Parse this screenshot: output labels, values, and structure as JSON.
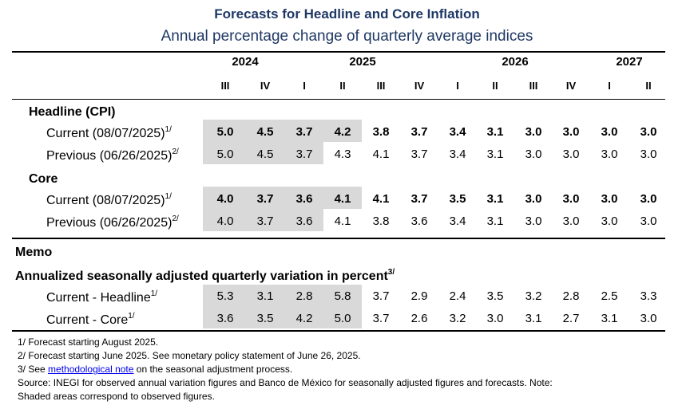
{
  "title": "Forecasts for Headline and Core Inflation",
  "subtitle": "Annual percentage change of quarterly average indices",
  "years": [
    "2024",
    "2025",
    "2026",
    "2027"
  ],
  "quarters": [
    "III",
    "IV",
    "I",
    "II",
    "III",
    "IV",
    "I",
    "II",
    "III",
    "IV",
    "I",
    "II"
  ],
  "headline": {
    "title": "Headline (CPI)",
    "current": {
      "label": "Current (08/07/2025)",
      "sup": "1/",
      "values": [
        "5.0",
        "4.5",
        "3.7",
        "4.2",
        "3.8",
        "3.7",
        "3.4",
        "3.1",
        "3.0",
        "3.0",
        "3.0",
        "3.0"
      ]
    },
    "previous": {
      "label": "Previous (06/26/2025)",
      "sup": "2/",
      "values": [
        "5.0",
        "4.5",
        "3.7",
        "4.3",
        "4.1",
        "3.7",
        "3.4",
        "3.1",
        "3.0",
        "3.0",
        "3.0",
        "3.0"
      ]
    }
  },
  "core": {
    "title": "Core",
    "current": {
      "label": "Current (08/07/2025)",
      "sup": "1/",
      "values": [
        "4.0",
        "3.7",
        "3.6",
        "4.1",
        "4.1",
        "3.7",
        "3.5",
        "3.1",
        "3.0",
        "3.0",
        "3.0",
        "3.0"
      ]
    },
    "previous": {
      "label": "Previous (06/26/2025)",
      "sup": "2/",
      "values": [
        "4.0",
        "3.7",
        "3.6",
        "4.1",
        "3.8",
        "3.6",
        "3.4",
        "3.1",
        "3.0",
        "3.0",
        "3.0",
        "3.0"
      ]
    }
  },
  "memo": {
    "title": "Memo",
    "subtitle": "Annualized seasonally adjusted quarterly variation in percent",
    "subtitle_sup": "3/",
    "headline": {
      "label": "Current - Headline",
      "sup": "1/",
      "values": [
        "5.3",
        "3.1",
        "2.8",
        "5.8",
        "3.7",
        "2.9",
        "2.4",
        "3.5",
        "3.2",
        "2.8",
        "2.5",
        "3.3"
      ]
    },
    "core": {
      "label": "Current - Core",
      "sup": "1/",
      "values": [
        "3.6",
        "3.5",
        "4.2",
        "5.0",
        "3.7",
        "2.6",
        "3.2",
        "3.0",
        "3.1",
        "2.7",
        "3.1",
        "3.0"
      ]
    }
  },
  "notes": {
    "n1": "1/ Forecast starting August 2025.",
    "n2": "2/ Forecast starting June 2025. See monetary policy statement of June 26, 2025.",
    "n3_prefix": "3/ See ",
    "n3_link": "methodological note",
    "n3_suffix": " on the seasonal adjustment process.",
    "source_line1": "Source: INEGI for observed annual variation figures and Banco de México for seasonally adjusted figures and forecasts. Note:",
    "source_line2": "Shaded areas correspond to observed figures."
  }
}
